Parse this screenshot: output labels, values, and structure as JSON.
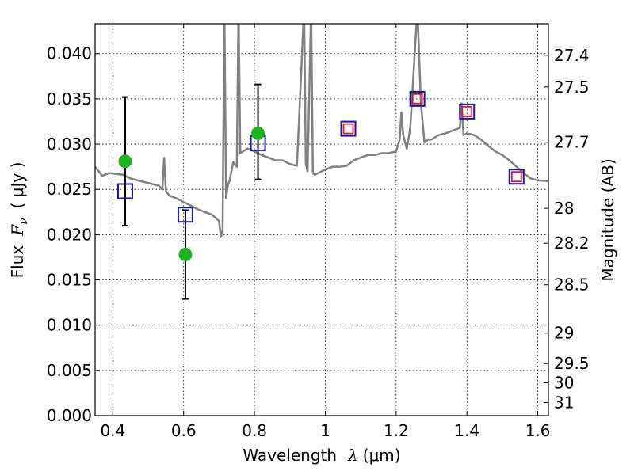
{
  "chart_data": {
    "type": "line",
    "xlabel_text": "Wavelength",
    "xlabel_symbol": "λ",
    "xlabel_unit": "(μm)",
    "ylabel_text": "Flux",
    "ylabel_symbol": "F",
    "ylabel_subscript": "ν",
    "ylabel_unit": "( μJy )",
    "y2label": "Magnitude (AB)",
    "xlim": [
      0.35,
      1.63
    ],
    "ylim": [
      0.0,
      0.0433
    ],
    "grid": true,
    "x_ticks": [
      0.4,
      0.6,
      0.8,
      1.0,
      1.2,
      1.4,
      1.6
    ],
    "x_tick_labels": [
      "0.4",
      "0.6",
      "0.8",
      "1",
      "1.2",
      "1.4",
      "1.6"
    ],
    "y_ticks": [
      0.0,
      0.005,
      0.01,
      0.015,
      0.02,
      0.025,
      0.03,
      0.035,
      0.04
    ],
    "y_tick_labels": [
      "0.000",
      "0.005",
      "0.010",
      "0.015",
      "0.020",
      "0.025",
      "0.030",
      "0.035",
      "0.040"
    ],
    "mag_ticks": [
      27.4,
      27.5,
      27.7,
      28,
      28.2,
      28.5,
      29,
      29.5,
      30,
      31
    ],
    "mag_tick_labels": [
      "27.4",
      "27.5",
      "27.7",
      "28",
      "28.2",
      "28.5",
      "29",
      "29.5",
      "30",
      "31"
    ],
    "colors": {
      "template": "#808080",
      "observed": "#1ab51a",
      "model_blue": "#1414b4",
      "model_red": "#e61414",
      "errorbar": "#000000"
    },
    "series": [
      {
        "kind": "template_spectrum",
        "x": [
          0.35,
          0.37,
          0.39,
          0.41,
          0.43,
          0.45,
          0.47,
          0.49,
          0.51,
          0.53,
          0.54,
          0.545,
          0.55,
          0.56,
          0.58,
          0.6,
          0.62,
          0.64,
          0.66,
          0.68,
          0.7,
          0.705,
          0.71,
          0.715,
          0.72,
          0.725,
          0.73,
          0.74,
          0.75,
          0.755,
          0.76,
          0.78,
          0.8,
          0.82,
          0.84,
          0.86,
          0.88,
          0.9,
          0.92,
          0.94,
          0.945,
          0.95,
          0.96,
          0.965,
          0.97,
          0.98,
          1.0,
          1.02,
          1.04,
          1.06,
          1.08,
          1.1,
          1.12,
          1.14,
          1.16,
          1.18,
          1.2,
          1.21,
          1.215,
          1.22,
          1.23,
          1.24,
          1.26,
          1.27,
          1.28,
          1.29,
          1.3,
          1.32,
          1.34,
          1.36,
          1.38,
          1.385,
          1.39,
          1.4,
          1.42,
          1.44,
          1.46,
          1.48,
          1.5,
          1.52,
          1.54,
          1.56,
          1.58,
          1.6,
          1.63
        ],
        "y": [
          0.0275,
          0.0265,
          0.0268,
          0.0267,
          0.0266,
          0.0262,
          0.026,
          0.0258,
          0.0256,
          0.0254,
          0.025,
          0.0285,
          0.0248,
          0.0243,
          0.024,
          0.0236,
          0.0232,
          0.0228,
          0.0225,
          0.0222,
          0.0215,
          0.0198,
          0.0205,
          0.045,
          0.024,
          0.0255,
          0.026,
          0.028,
          0.0275,
          0.045,
          0.029,
          0.0295,
          0.0292,
          0.0288,
          0.0285,
          0.0282,
          0.0282,
          0.0278,
          0.0276,
          0.045,
          0.0278,
          0.027,
          0.045,
          0.0268,
          0.0266,
          0.0268,
          0.0272,
          0.0275,
          0.0275,
          0.0276,
          0.0282,
          0.0285,
          0.0288,
          0.0288,
          0.029,
          0.029,
          0.0292,
          0.0305,
          0.0335,
          0.031,
          0.0295,
          0.0318,
          0.045,
          0.0345,
          0.0302,
          0.0305,
          0.0305,
          0.031,
          0.0312,
          0.0315,
          0.0318,
          0.0345,
          0.031,
          0.0312,
          0.031,
          0.0305,
          0.0298,
          0.0292,
          0.0288,
          0.0282,
          0.0275,
          0.0268,
          0.0262,
          0.026,
          0.0259
        ]
      },
      {
        "kind": "observed_points",
        "x": [
          0.435,
          0.605,
          0.81
        ],
        "y": [
          0.0281,
          0.0178,
          0.0312
        ],
        "yerr_low": [
          0.021,
          0.0129,
          0.0261
        ],
        "yerr_high": [
          0.0352,
          0.0227,
          0.0366
        ]
      },
      {
        "kind": "model_blue_squares",
        "x": [
          0.435,
          0.605,
          0.81,
          1.065,
          1.26,
          1.4,
          1.54
        ],
        "y": [
          0.0248,
          0.0222,
          0.0301,
          0.0317,
          0.035,
          0.0336,
          0.0264
        ]
      },
      {
        "kind": "model_red_squares",
        "x": [
          1.065,
          1.26,
          1.4,
          1.54
        ],
        "y": [
          0.0317,
          0.035,
          0.0336,
          0.0264
        ]
      }
    ]
  }
}
